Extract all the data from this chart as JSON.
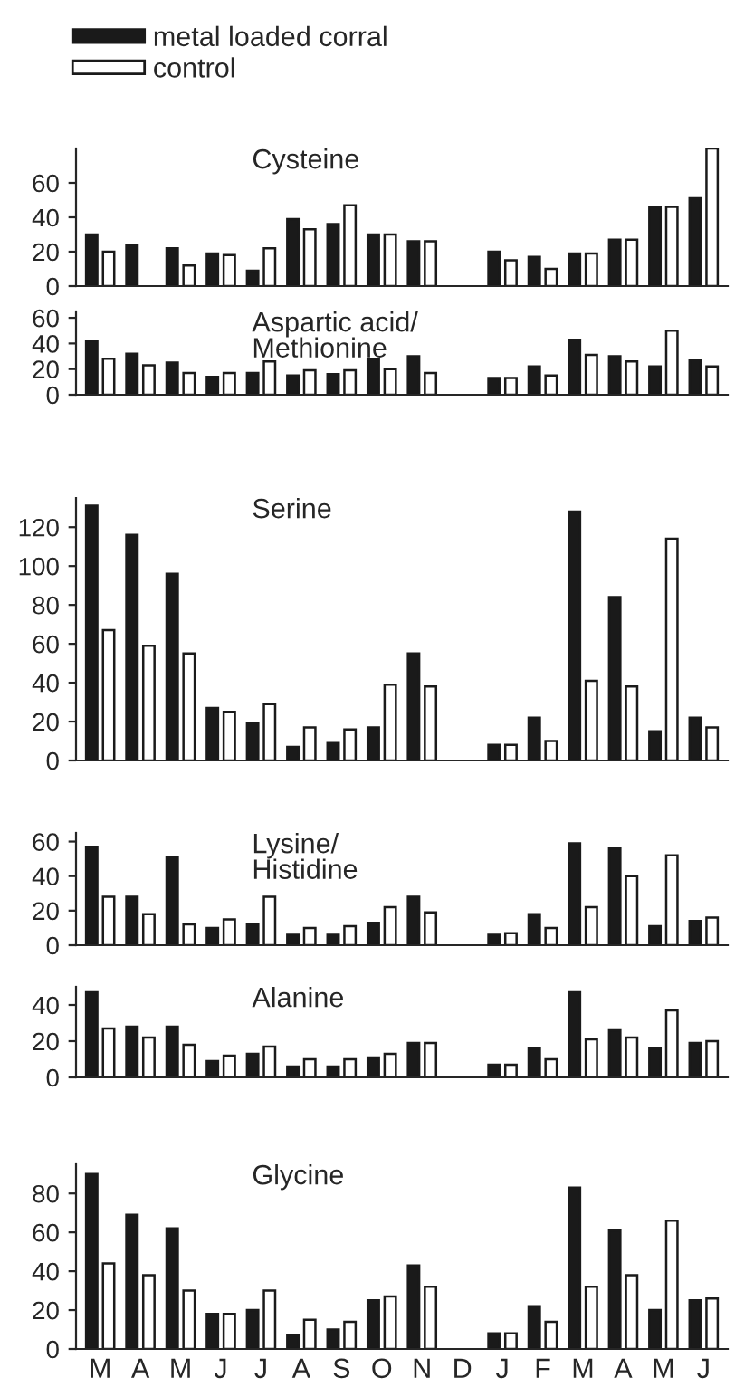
{
  "chart_data": [
    {
      "type": "bar",
      "title": "Cysteine",
      "legend": "top left",
      "tick_labels": "y",
      "ylim": [
        0,
        80
      ],
      "yticks": [
        0,
        20,
        40,
        60
      ],
      "categories": [
        null,
        null,
        null,
        null,
        null,
        null,
        null,
        null,
        null,
        null,
        null,
        null,
        null,
        null,
        null,
        null
      ],
      "series": [
        {
          "name": "metal loaded corral",
          "color": "#1a1a1a",
          "values": [
            30,
            24,
            22,
            19,
            9,
            39,
            36,
            30,
            26,
            null,
            20,
            17,
            19,
            27,
            46,
            51
          ]
        },
        {
          "name": "control",
          "color": "#ffffff",
          "values": [
            20,
            null,
            12,
            18,
            22,
            33,
            47,
            30,
            26,
            null,
            15,
            10,
            19,
            27,
            46,
            80
          ]
        }
      ]
    },
    {
      "type": "bar",
      "title": "Aspartic acid/\nMethionine",
      "tick_labels": "y",
      "ylim": [
        0,
        65
      ],
      "yticks": [
        0,
        20,
        40,
        60
      ],
      "categories": [
        null,
        null,
        null,
        null,
        null,
        null,
        null,
        null,
        null,
        null,
        null,
        null,
        null,
        null,
        null,
        null
      ],
      "series": [
        {
          "color": "#1a1a1a",
          "values": [
            42,
            32,
            25,
            14,
            17,
            15,
            16,
            28,
            30,
            null,
            13,
            22,
            43,
            30,
            22,
            27
          ]
        },
        {
          "color": "#ffffff",
          "values": [
            28,
            23,
            17,
            17,
            26,
            19,
            19,
            20,
            17,
            null,
            13,
            15,
            31,
            26,
            50,
            22
          ]
        }
      ]
    },
    {
      "type": "bar",
      "title": "Serine",
      "tick_labels": "y",
      "ylim": [
        0,
        135
      ],
      "yticks": [
        0,
        20,
        40,
        60,
        80,
        100,
        120
      ],
      "categories": [
        null,
        null,
        null,
        null,
        null,
        null,
        null,
        null,
        null,
        null,
        null,
        null,
        null,
        null,
        null,
        null
      ],
      "series": [
        {
          "color": "#1a1a1a",
          "values": [
            131,
            116,
            96,
            27,
            19,
            7,
            9,
            17,
            55,
            null,
            8,
            22,
            128,
            84,
            15,
            22
          ]
        },
        {
          "color": "#ffffff",
          "values": [
            67,
            59,
            55,
            25,
            29,
            17,
            16,
            39,
            38,
            null,
            8,
            10,
            41,
            38,
            114,
            17
          ]
        }
      ]
    },
    {
      "type": "bar",
      "title": "Lysine/\nHistidine",
      "tick_labels": "y",
      "ylim": [
        0,
        65
      ],
      "yticks": [
        0,
        20,
        40,
        60
      ],
      "categories": [
        null,
        null,
        null,
        null,
        null,
        null,
        null,
        null,
        null,
        null,
        null,
        null,
        null,
        null,
        null,
        null
      ],
      "series": [
        {
          "color": "#1a1a1a",
          "values": [
            57,
            28,
            51,
            10,
            12,
            6,
            6,
            13,
            28,
            null,
            6,
            18,
            59,
            56,
            11,
            14
          ]
        },
        {
          "color": "#ffffff",
          "values": [
            28,
            18,
            12,
            15,
            28,
            10,
            11,
            22,
            19,
            null,
            7,
            10,
            22,
            40,
            52,
            16
          ]
        }
      ]
    },
    {
      "type": "bar",
      "title": "Alanine",
      "tick_labels": "y",
      "ylim": [
        0,
        50
      ],
      "yticks": [
        0,
        20,
        40
      ],
      "categories": [
        null,
        null,
        null,
        null,
        null,
        null,
        null,
        null,
        null,
        null,
        null,
        null,
        null,
        null,
        null,
        null
      ],
      "series": [
        {
          "color": "#1a1a1a",
          "values": [
            47,
            28,
            28,
            9,
            13,
            6,
            6,
            11,
            19,
            null,
            7,
            16,
            47,
            26,
            16,
            19
          ]
        },
        {
          "color": "#ffffff",
          "values": [
            27,
            22,
            18,
            12,
            17,
            10,
            10,
            13,
            19,
            null,
            7,
            10,
            21,
            22,
            37,
            20
          ]
        }
      ]
    },
    {
      "type": "bar",
      "title": "Glycine",
      "ylim": [
        0,
        95
      ],
      "yticks": [
        0,
        20,
        40,
        60,
        80
      ],
      "categories": [
        "M",
        "A",
        "M",
        "J",
        "J",
        "A",
        "S",
        "O",
        "N",
        "D",
        "J",
        "F",
        "M",
        "A",
        "M",
        "J"
      ],
      "series": [
        {
          "color": "#1a1a1a",
          "values": [
            90,
            69,
            62,
            18,
            20,
            7,
            10,
            25,
            43,
            null,
            8,
            22,
            83,
            61,
            20,
            25
          ]
        },
        {
          "color": "#ffffff",
          "values": [
            44,
            38,
            30,
            18,
            30,
            15,
            14,
            27,
            32,
            null,
            8,
            14,
            32,
            38,
            66,
            26
          ]
        }
      ]
    }
  ]
}
